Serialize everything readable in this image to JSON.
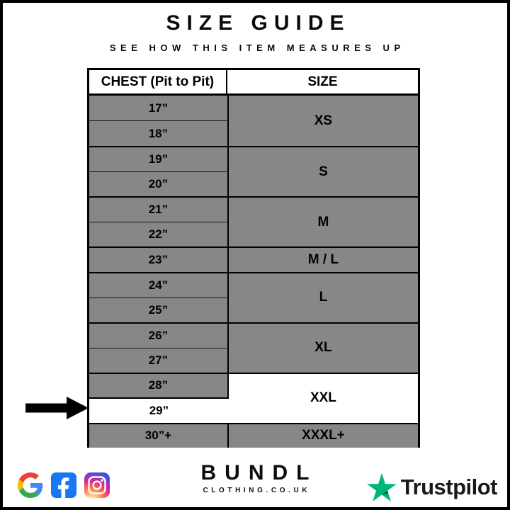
{
  "page": {
    "title": "SIZE GUIDE",
    "subtitle": "SEE HOW THIS ITEM MEASURES UP"
  },
  "table": {
    "columns": [
      "CHEST (Pit to Pit)",
      "SIZE"
    ],
    "groups": [
      {
        "size": "XS",
        "highlight": false,
        "measurements": [
          {
            "label": "17”",
            "highlight": false
          },
          {
            "label": "18”",
            "highlight": false
          }
        ]
      },
      {
        "size": "S",
        "highlight": false,
        "measurements": [
          {
            "label": "19”",
            "highlight": false
          },
          {
            "label": "20”",
            "highlight": false
          }
        ]
      },
      {
        "size": "M",
        "highlight": false,
        "measurements": [
          {
            "label": "21”",
            "highlight": false
          },
          {
            "label": "22”",
            "highlight": false
          }
        ]
      },
      {
        "size": "M / L",
        "highlight": false,
        "measurements": [
          {
            "label": "23”",
            "highlight": false
          }
        ]
      },
      {
        "size": "L",
        "highlight": false,
        "measurements": [
          {
            "label": "24”",
            "highlight": false
          },
          {
            "label": "25”",
            "highlight": false
          }
        ]
      },
      {
        "size": "XL",
        "highlight": false,
        "measurements": [
          {
            "label": "26”",
            "highlight": false
          },
          {
            "label": "27”",
            "highlight": false
          }
        ]
      },
      {
        "size": "XXL",
        "highlight": true,
        "measurements": [
          {
            "label": "28”",
            "highlight": false
          },
          {
            "label": "29”",
            "highlight": true
          }
        ]
      },
      {
        "size": "XXXL+",
        "highlight": false,
        "measurements": [
          {
            "label": "30”+",
            "highlight": false
          }
        ]
      }
    ],
    "highlighted_measurement": "29”",
    "highlighted_size": "XXL"
  },
  "footer": {
    "brand": {
      "name": "BUNDL",
      "domain": "CLOTHING.CO.UK"
    },
    "social_icons": [
      "google",
      "facebook",
      "instagram"
    ],
    "trustpilot_label": "Trustpilot"
  },
  "colors": {
    "cell_gray": "#878787",
    "border_black": "#000000",
    "highlight_white": "#ffffff",
    "trustpilot_green": "#00B67A",
    "trustpilot_dark_green": "#005128",
    "facebook_blue": "#1877F2",
    "google_blue": "#4285F4",
    "google_red": "#EA4335",
    "google_yellow": "#FBBC05",
    "google_green": "#34A853"
  }
}
